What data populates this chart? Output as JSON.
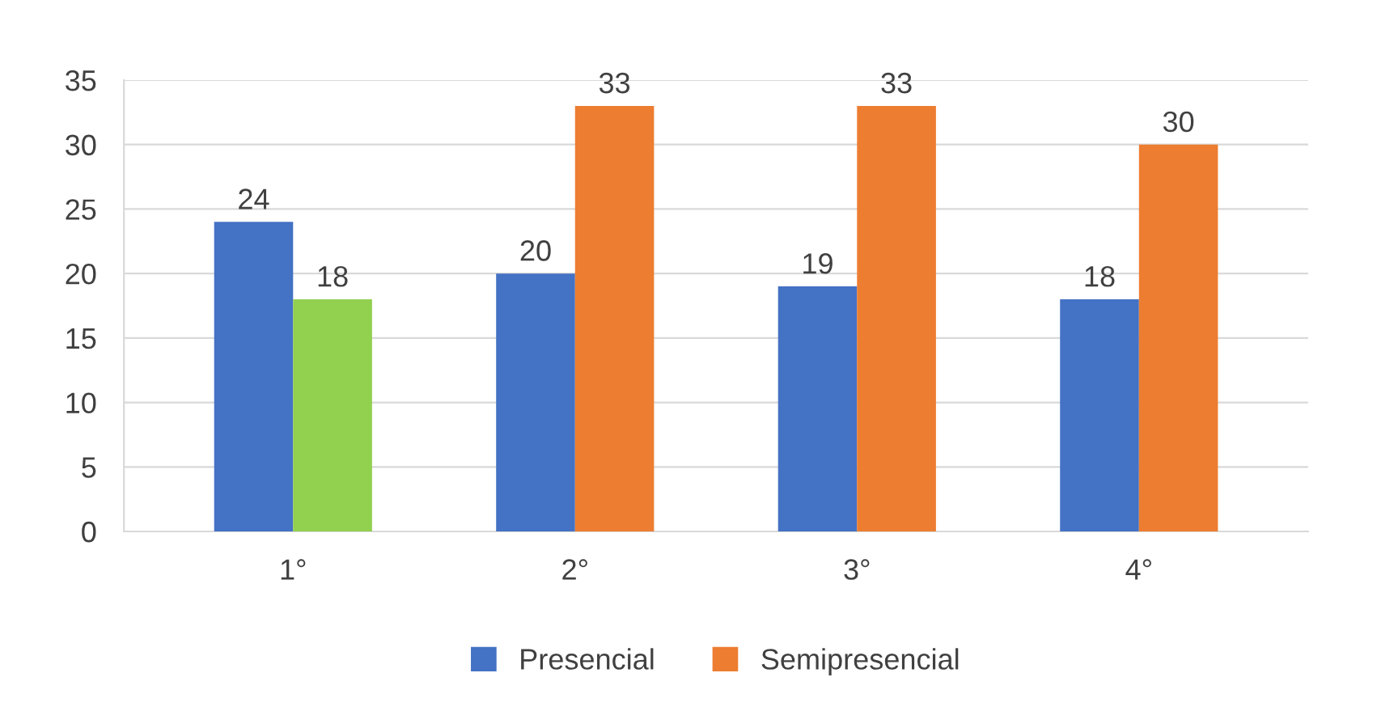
{
  "chart_data": {
    "type": "bar",
    "categories": [
      "1°",
      "2°",
      "3°",
      "4°"
    ],
    "series": [
      {
        "name": "Presencial",
        "color": "#4472c4",
        "values": [
          24,
          20,
          19,
          18
        ]
      },
      {
        "name": "Semipresencial",
        "color": "#ed7d31",
        "colors": [
          "#92d050",
          "#ed7d31",
          "#ed7d31",
          "#ed7d31"
        ],
        "values": [
          18,
          33,
          33,
          30
        ]
      }
    ],
    "ylim": [
      0,
      35
    ],
    "yticks": [
      0,
      5,
      10,
      15,
      20,
      25,
      30,
      35
    ],
    "grid": "y",
    "legend": "bottom",
    "data_labels": true
  }
}
